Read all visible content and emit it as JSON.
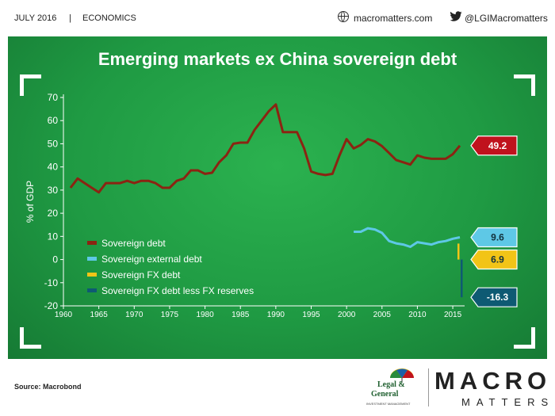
{
  "header": {
    "date": "JULY 2016",
    "separator": "|",
    "category": "ECONOMICS",
    "website": "macromatters.com",
    "twitter": "@LGIMacromatters"
  },
  "footer": {
    "source": "Source: Macrobond",
    "logo_legal_top": "Legal &",
    "logo_legal_bottom": "General",
    "logo_legal_sub": "INVESTMENT MANAGEMENT",
    "brand_main": "MACRO",
    "brand_sub": "MATTERS"
  },
  "colors": {
    "background": "#1f9a43",
    "sovereign_debt": "#8b2412",
    "external_debt": "#5ec8e6",
    "fx_debt": "#f2c417",
    "fx_less_reserves": "#0e5a73",
    "label_red": "#c0121d"
  },
  "chart_data": {
    "type": "line",
    "title": "Emerging markets ex China sovereign debt",
    "ylabel": "% of GDP",
    "xlabel": "",
    "xlim": [
      1960,
      2016
    ],
    "ylim": [
      -20,
      70
    ],
    "xticks": [
      1960,
      1965,
      1970,
      1975,
      1980,
      1985,
      1990,
      1995,
      2000,
      2005,
      2010,
      2015
    ],
    "yticks": [
      -20,
      -10,
      0,
      10,
      20,
      30,
      40,
      50,
      60,
      70
    ],
    "grid": false,
    "legend_position": "bottom-left",
    "series": [
      {
        "name": "Sovereign debt",
        "kind": "line",
        "color": "#8b2412",
        "x": [
          1961,
          1962,
          1963,
          1964,
          1965,
          1966,
          1967,
          1968,
          1969,
          1970,
          1971,
          1972,
          1973,
          1974,
          1975,
          1976,
          1977,
          1978,
          1979,
          1980,
          1981,
          1982,
          1983,
          1984,
          1985,
          1986,
          1987,
          1988,
          1989,
          1990,
          1991,
          1992,
          1993,
          1994,
          1995,
          1996,
          1997,
          1998,
          1999,
          2000,
          2001,
          2002,
          2003,
          2004,
          2005,
          2006,
          2007,
          2008,
          2009,
          2010,
          2011,
          2012,
          2013,
          2014,
          2015,
          2016
        ],
        "y": [
          31,
          35,
          33,
          31,
          29,
          33,
          33,
          33,
          34,
          33,
          34,
          34,
          33,
          31,
          31,
          34,
          35,
          38.5,
          38.5,
          37,
          37.5,
          42,
          45,
          50,
          50.5,
          50.5,
          56,
          60,
          64,
          67,
          55,
          55,
          55,
          48,
          38,
          37,
          36.5,
          37,
          45,
          52,
          48,
          49.5,
          52,
          51,
          49,
          46,
          43,
          42,
          41,
          45,
          44,
          43.5,
          43.5,
          43.5,
          45.5,
          49.2
        ]
      },
      {
        "name": "Sovereign external debt",
        "kind": "line",
        "color": "#5ec8e6",
        "x": [
          2001,
          2002,
          2003,
          2004,
          2005,
          2006,
          2007,
          2008,
          2009,
          2010,
          2011,
          2012,
          2013,
          2014,
          2015,
          2016
        ],
        "y": [
          12,
          12,
          13.5,
          13,
          11.5,
          8,
          7,
          6.5,
          5.5,
          7.5,
          7,
          6.5,
          7.5,
          8,
          9,
          9.6
        ]
      },
      {
        "name": "Sovereign FX debt",
        "kind": "bar",
        "color": "#f2c417",
        "x": [
          2016
        ],
        "y": [
          6.9
        ]
      },
      {
        "name": "Sovereign FX debt less FX reserves",
        "kind": "bar",
        "color": "#0e5a73",
        "x": [
          2016
        ],
        "y": [
          -16.3
        ]
      }
    ],
    "end_labels": [
      {
        "text": "49.2",
        "value": 49.2,
        "series": "Sovereign debt",
        "fill": "#c0121d",
        "text_color": "#ffffff"
      },
      {
        "text": "9.6",
        "value": 9.6,
        "series": "Sovereign external debt",
        "fill": "#5ec8e6",
        "text_color": "#12323c"
      },
      {
        "text": "6.9",
        "value": 6.9,
        "series": "Sovereign FX debt",
        "fill": "#f2c417",
        "text_color": "#12323c"
      },
      {
        "text": "-16.3",
        "value": -16.3,
        "series": "Sovereign FX debt less FX reserves",
        "fill": "#0e5a73",
        "text_color": "#ffffff"
      }
    ]
  }
}
